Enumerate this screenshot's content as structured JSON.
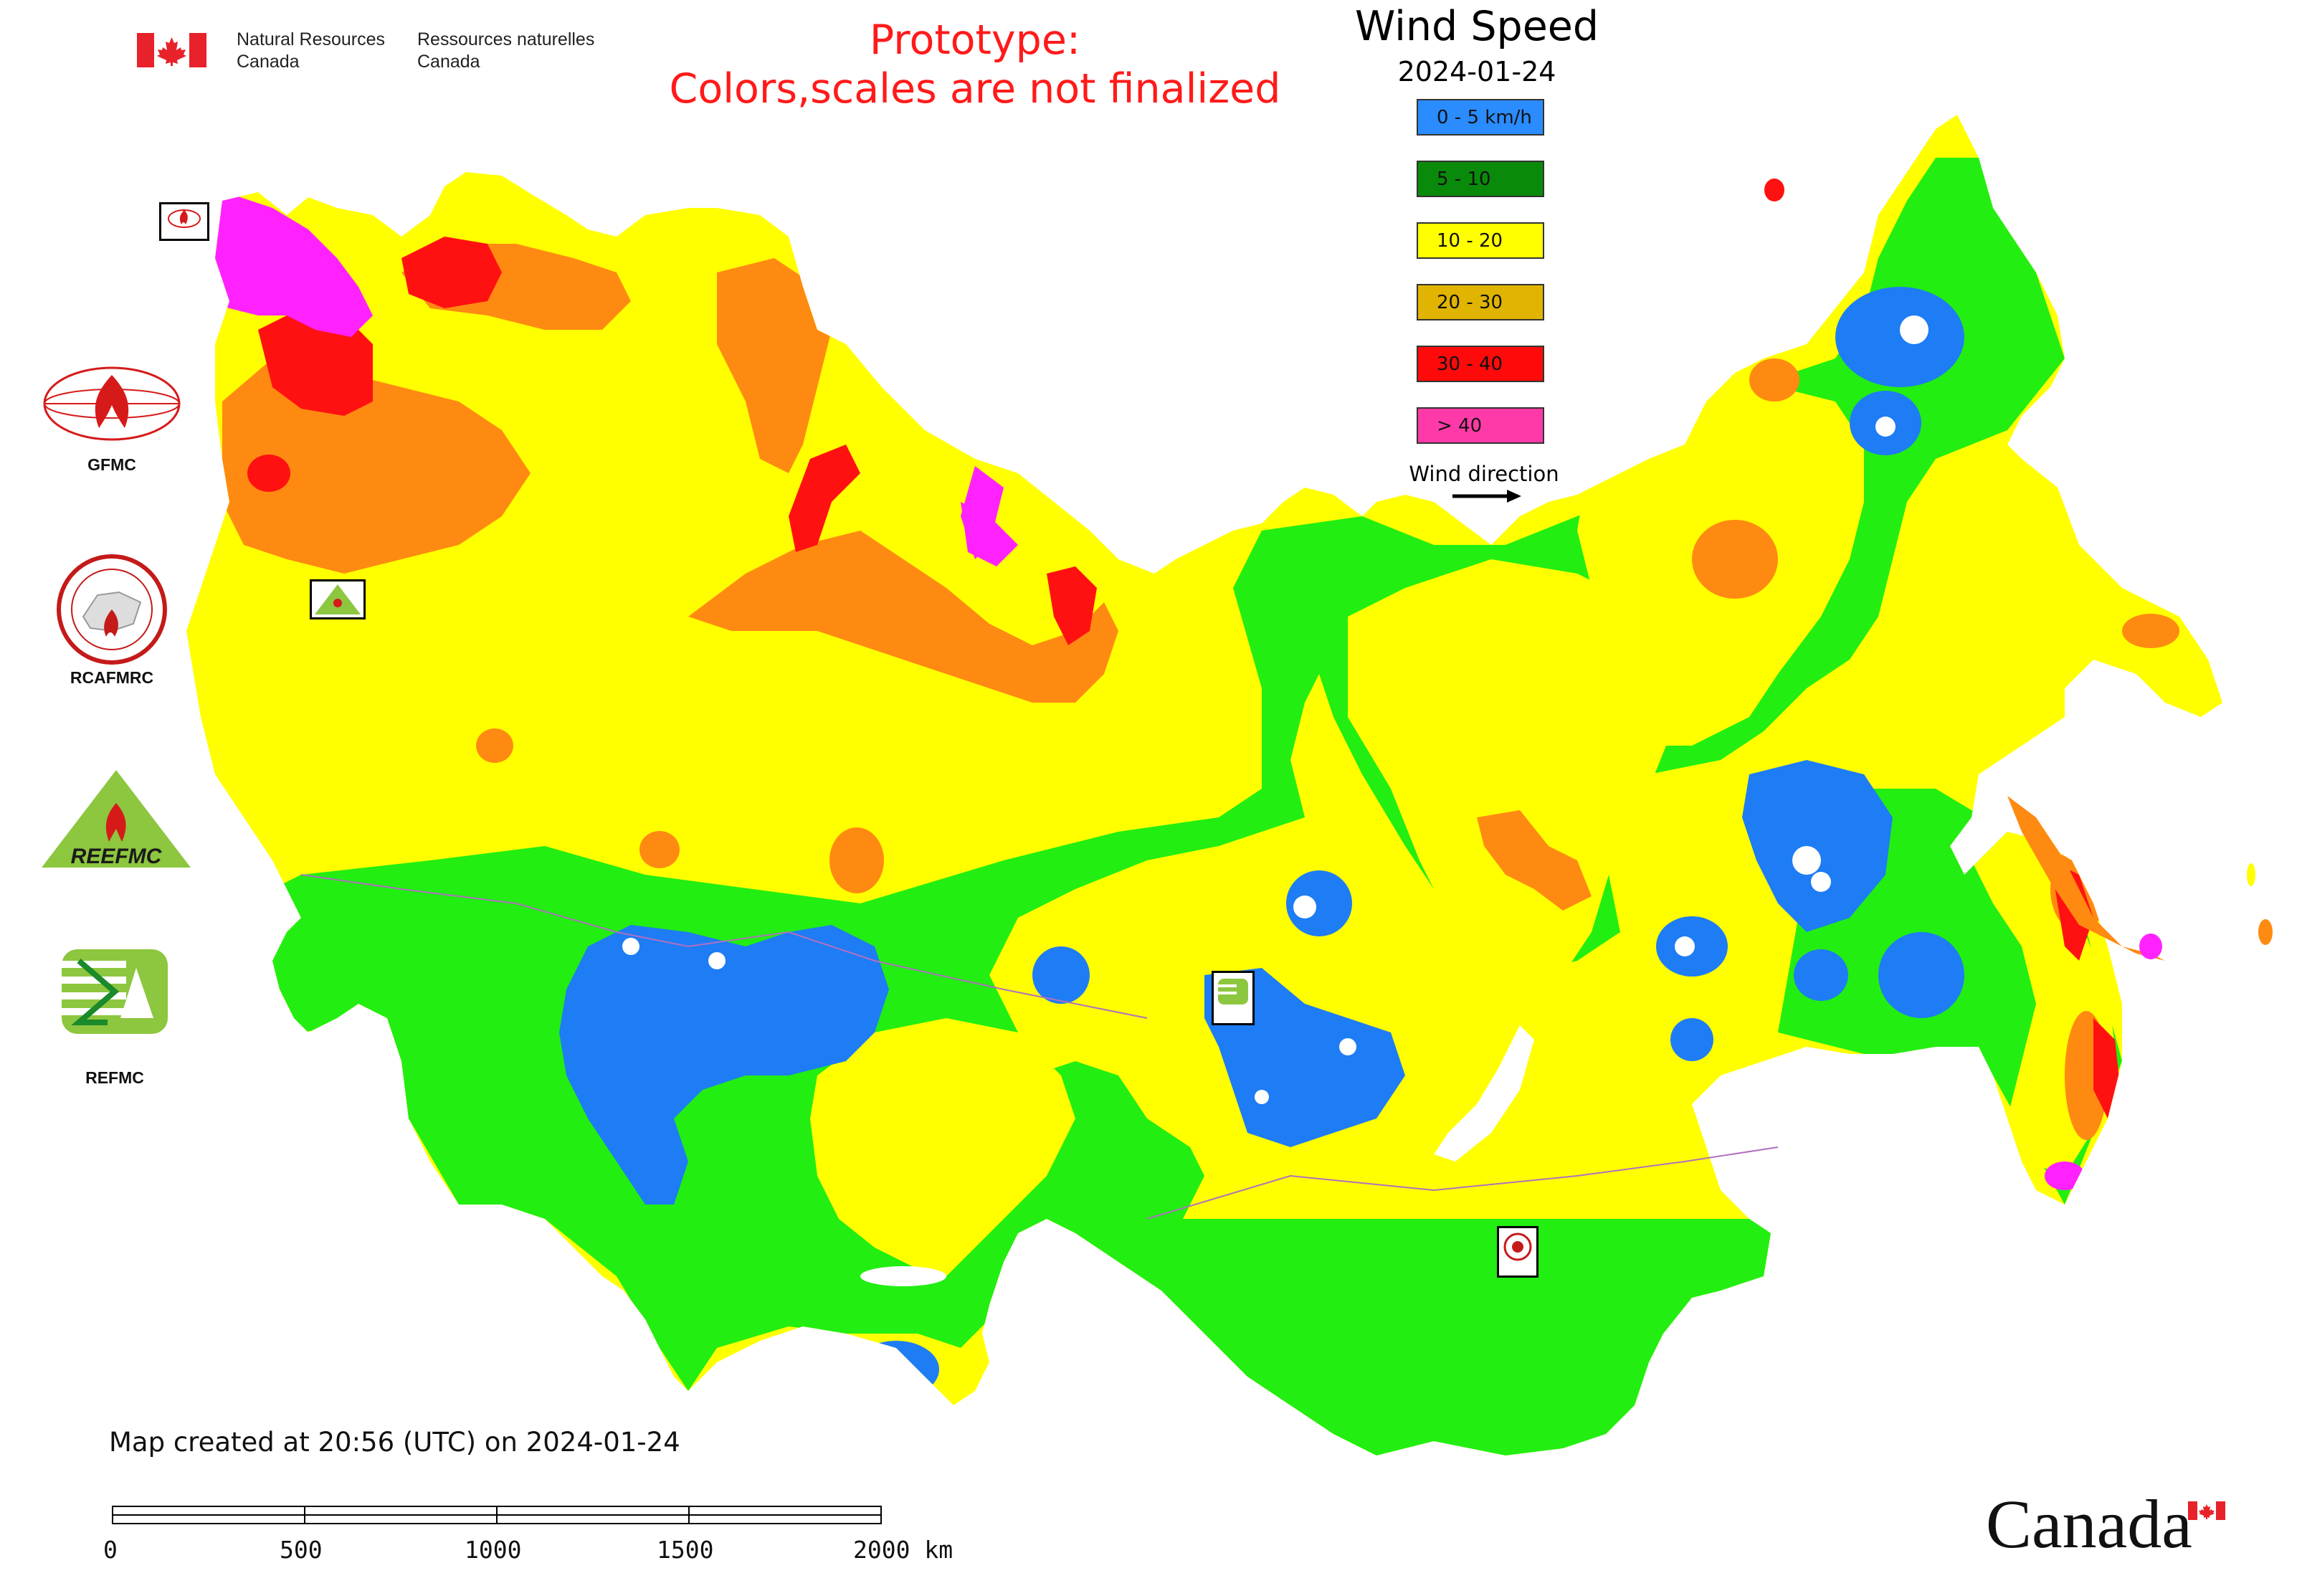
{
  "agency": {
    "name_en_line1": "Natural Resources",
    "name_en_line2": "Canada",
    "name_fr_line1": "Ressources naturelles",
    "name_fr_line2": "Canada",
    "flag_icon": "canada-flag-icon"
  },
  "notice": {
    "line1": "Prototype:",
    "line2": "Colors,scales are not finalized",
    "color": "#ff1a1a"
  },
  "title": "Wind Speed",
  "date": "2024-01-24",
  "legend": {
    "items": [
      {
        "label": "0 - 5 km/h",
        "color": "#2a8cff"
      },
      {
        "label": "5 - 10",
        "color": "#0a8a0a"
      },
      {
        "label": "10 - 20",
        "color": "#ffff00"
      },
      {
        "label": "20 - 30",
        "color": "#e0b400"
      },
      {
        "label": "30 - 40",
        "color": "#ff0a0a"
      },
      {
        "label": "> 40",
        "color": "#ff3aa8"
      }
    ],
    "direction_label": "Wind direction",
    "direction_icon": "arrow-right-icon"
  },
  "map_colors": {
    "calm": "#1e7cf5",
    "light": "#22ee11",
    "moderate": "#ffff00",
    "fresh": "#ff8a11",
    "strong": "#ff1111",
    "gale": "#ff22ff"
  },
  "side_logos": [
    {
      "label": "GFMC"
    },
    {
      "label": "RCAFMRC"
    },
    {
      "label": ""
    },
    {
      "label": "REFMC"
    }
  ],
  "reefmc_wordmark": "REEFMC",
  "footer": {
    "created": "Map created at 20:56 (UTC) on 2024-01-24"
  },
  "scale_bar": {
    "labels": [
      "0",
      "500",
      "1000",
      "1500",
      "2000 km"
    ]
  },
  "wordmark": "Canada"
}
